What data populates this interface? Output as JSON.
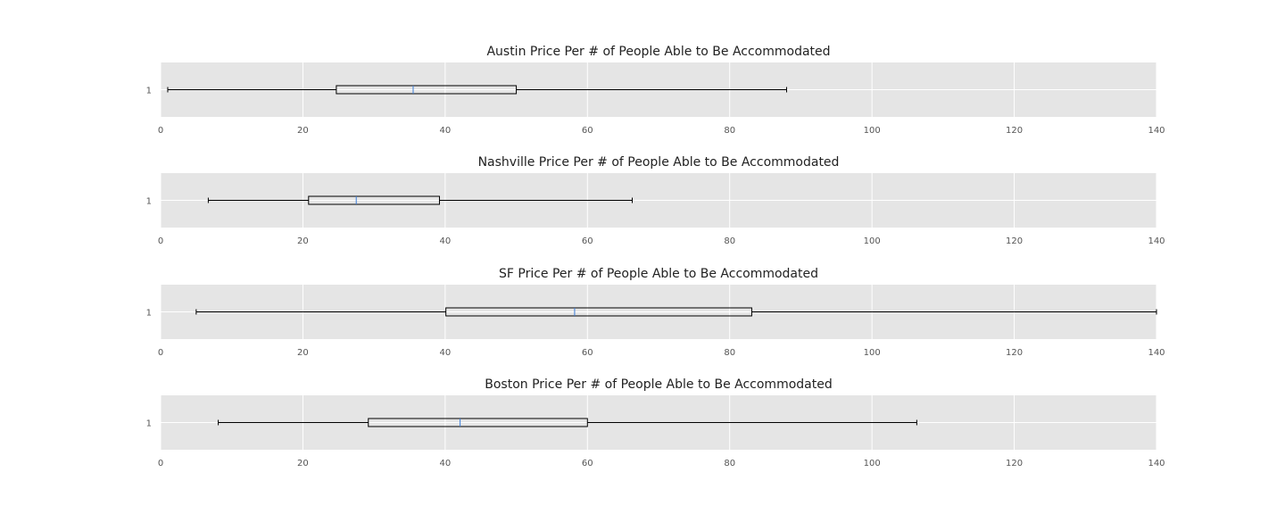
{
  "chart_data": [
    {
      "type": "boxplot",
      "orientation": "horizontal",
      "title": "Austin Price Per # of People Able to Be Accommodated",
      "categories": [
        "1"
      ],
      "box": {
        "whisker_low": 1,
        "q1": 24.7,
        "median": 35.5,
        "q3": 50.0,
        "whisker_high": 88
      },
      "xlim": [
        0,
        140
      ],
      "xticks": [
        0,
        20,
        40,
        60,
        80,
        100,
        120,
        140
      ],
      "grid": true
    },
    {
      "type": "boxplot",
      "orientation": "horizontal",
      "title": "Nashville Price Per # of People Able to Be Accommodated",
      "categories": [
        "1"
      ],
      "box": {
        "whisker_low": 6.7,
        "q1": 20.8,
        "median": 27.5,
        "q3": 39.2,
        "whisker_high": 66.3
      },
      "xlim": [
        0,
        140
      ],
      "xticks": [
        0,
        20,
        40,
        60,
        80,
        100,
        120,
        140
      ],
      "grid": true
    },
    {
      "type": "boxplot",
      "orientation": "horizontal",
      "title": "SF Price Per # of People Able to Be Accommodated",
      "categories": [
        "1"
      ],
      "box": {
        "whisker_low": 5,
        "q1": 40.1,
        "median": 58.2,
        "q3": 83.1,
        "whisker_high": 140
      },
      "xlim": [
        0,
        140
      ],
      "xticks": [
        0,
        20,
        40,
        60,
        80,
        100,
        120,
        140
      ],
      "grid": true
    },
    {
      "type": "boxplot",
      "orientation": "horizontal",
      "title": "Boston Price Per # of People Able to Be Accommodated",
      "categories": [
        "1"
      ],
      "box": {
        "whisker_low": 8.1,
        "q1": 29.2,
        "median": 42.1,
        "q3": 60.0,
        "whisker_high": 106.3
      },
      "xlim": [
        0,
        140
      ],
      "xticks": [
        0,
        20,
        40,
        60,
        80,
        100,
        120,
        140
      ],
      "grid": true
    }
  ],
  "colors": {
    "panel_bg": "#e5e5e5",
    "grid": "#ffffff",
    "box_edge": "#000000",
    "median": "#3b7dd8",
    "text": "#222222",
    "tick_text": "#555555"
  }
}
